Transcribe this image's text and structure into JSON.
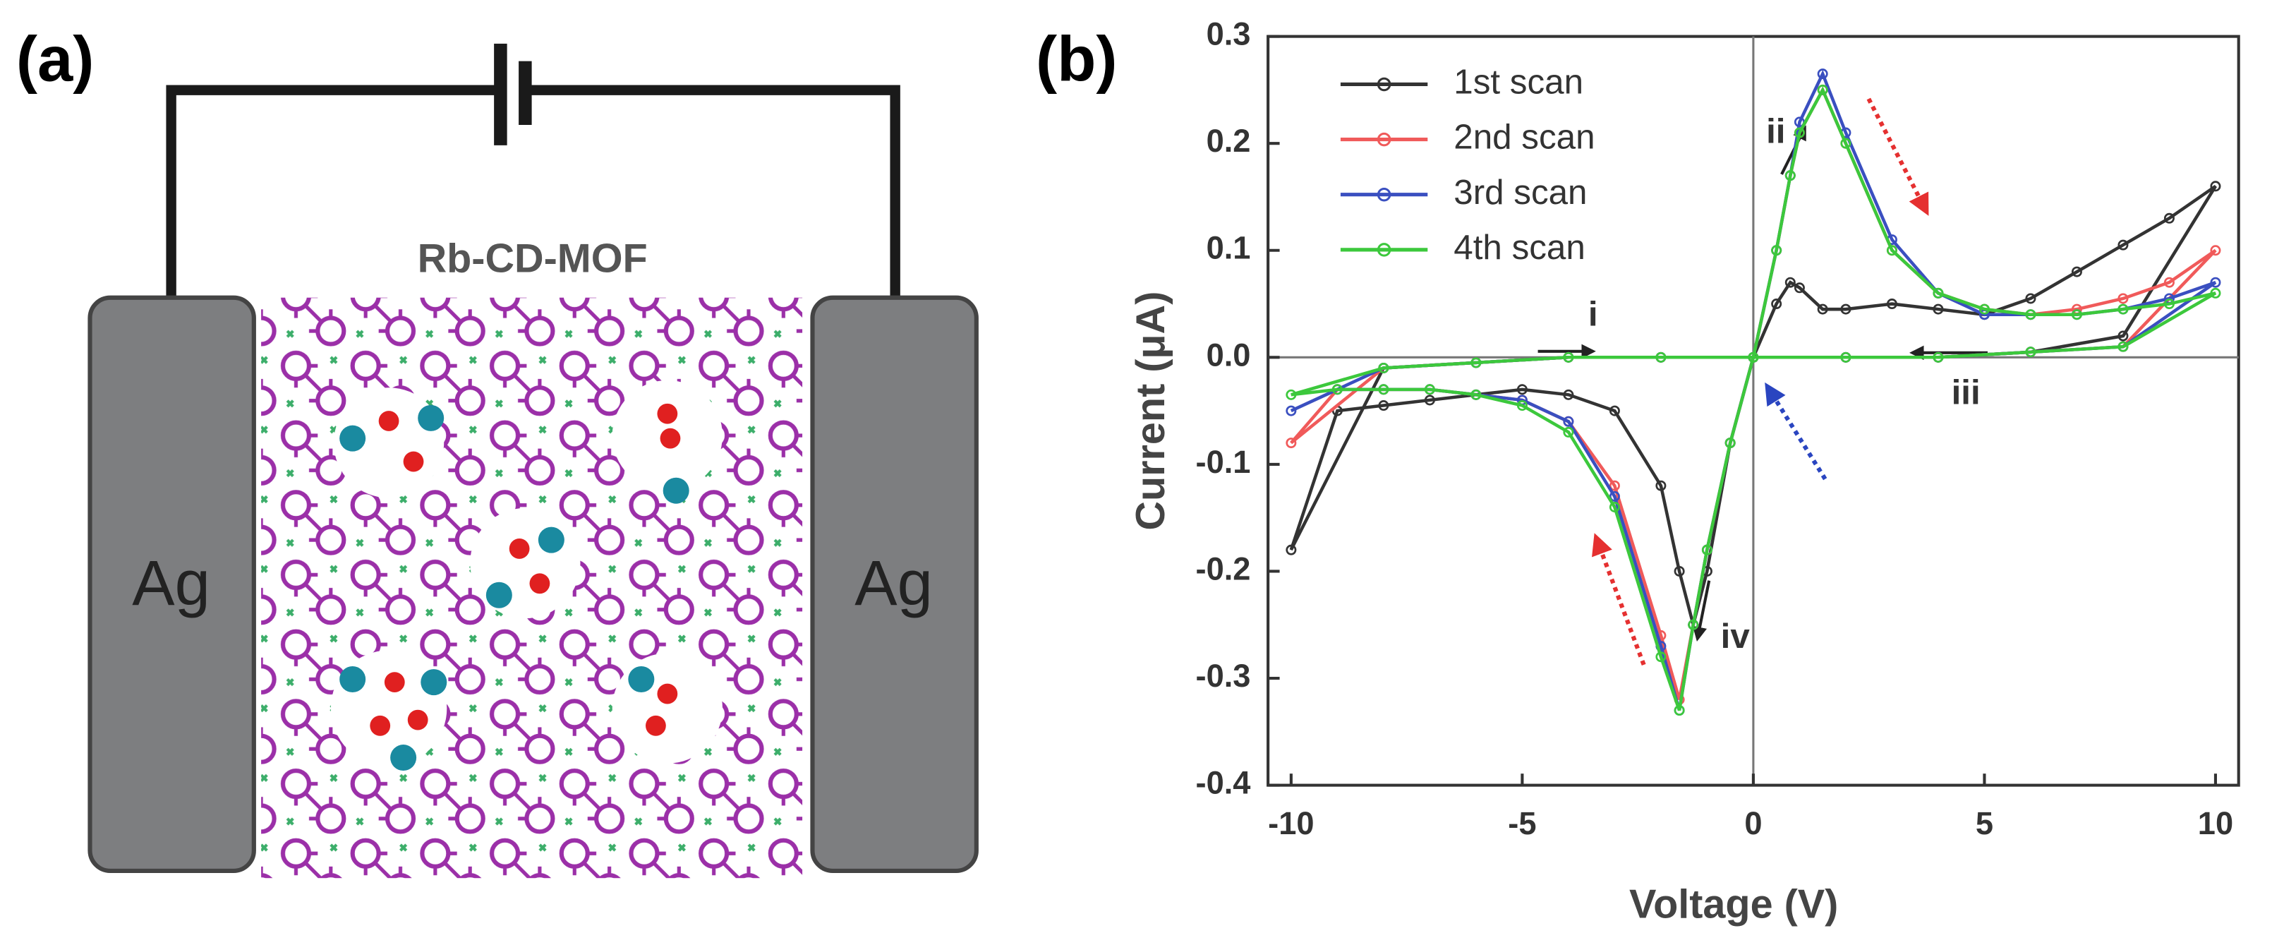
{
  "panel_a": {
    "label": "(a)",
    "title": "Rb-CD-MOF",
    "electrodes": [
      "Ag",
      "Ag"
    ]
  },
  "chart_data": {
    "type": "line",
    "panel_label": "(b)",
    "x_label": "Voltage (V)",
    "y_label": "Current (μA)",
    "x": [
      0,
      0.5,
      0.8,
      1.0,
      1.5,
      2,
      3,
      4,
      5,
      6,
      7,
      8,
      9,
      10,
      8,
      6,
      4,
      2,
      0,
      -0.5,
      -1,
      -1.3,
      -1.6,
      -2,
      -3,
      -4,
      -5,
      -6,
      -7,
      -8,
      -9,
      -10,
      -8,
      -6,
      -4,
      -2,
      0
    ],
    "series": [
      {
        "name": "1st scan",
        "color": "#333333",
        "values": [
          0,
          0.05,
          0.07,
          0.065,
          0.045,
          0.045,
          0.05,
          0.045,
          0.04,
          0.055,
          0.08,
          0.105,
          0.13,
          0.16,
          0.02,
          0.005,
          0,
          0,
          0,
          -0.08,
          -0.2,
          -0.25,
          -0.2,
          -0.12,
          -0.05,
          -0.035,
          -0.03,
          -0.035,
          -0.04,
          -0.045,
          -0.05,
          -0.18,
          -0.01,
          -0.005,
          0,
          0,
          0
        ]
      },
      {
        "name": "2nd scan",
        "color": "#f05a5a",
        "values": [
          0,
          0.1,
          0.17,
          0.21,
          0.25,
          0.2,
          0.1,
          0.06,
          0.045,
          0.04,
          0.045,
          0.055,
          0.07,
          0.1,
          0.01,
          0.005,
          0,
          0,
          0,
          -0.08,
          -0.18,
          -0.25,
          -0.32,
          -0.26,
          -0.12,
          -0.06,
          -0.04,
          -0.035,
          -0.03,
          -0.03,
          -0.03,
          -0.08,
          -0.01,
          -0.005,
          0,
          0,
          0
        ]
      },
      {
        "name": "3rd scan",
        "color": "#3a4fc0",
        "values": [
          0,
          0.1,
          0.17,
          0.22,
          0.265,
          0.21,
          0.11,
          0.06,
          0.04,
          0.04,
          0.04,
          0.045,
          0.055,
          0.07,
          0.01,
          0.005,
          0,
          0,
          0,
          -0.08,
          -0.18,
          -0.25,
          -0.33,
          -0.27,
          -0.13,
          -0.06,
          -0.04,
          -0.035,
          -0.03,
          -0.03,
          -0.03,
          -0.05,
          -0.01,
          -0.005,
          0,
          0,
          0
        ]
      },
      {
        "name": "4th scan",
        "color": "#3cc83c",
        "values": [
          0,
          0.1,
          0.17,
          0.21,
          0.25,
          0.2,
          0.1,
          0.06,
          0.045,
          0.04,
          0.04,
          0.045,
          0.05,
          0.06,
          0.01,
          0.005,
          0,
          0,
          0,
          -0.08,
          -0.18,
          -0.25,
          -0.33,
          -0.28,
          -0.14,
          -0.07,
          -0.045,
          -0.035,
          -0.03,
          -0.03,
          -0.03,
          -0.035,
          -0.01,
          -0.005,
          0,
          0,
          0
        ]
      }
    ],
    "xlim": [
      -10.5,
      10.5
    ],
    "ylim": [
      -0.4,
      0.3
    ],
    "xticks": [
      -10,
      -5,
      0,
      5,
      10
    ],
    "yticks": [
      -0.4,
      -0.3,
      -0.2,
      -0.1,
      {
        "value": 0,
        "label": "0.0"
      },
      0.1,
      0.2,
      0.3
    ],
    "legend": "upper left",
    "annotations": [
      "i",
      "ii",
      "iii",
      "iv"
    ]
  }
}
